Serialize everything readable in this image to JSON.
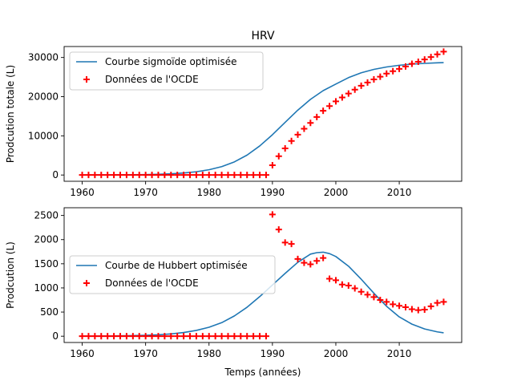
{
  "chart_data": [
    {
      "type": "line",
      "title": "HRV",
      "xlabel": "",
      "ylabel": "Prodcution totale (L)",
      "xlim": [
        1957.15,
        2019.85
      ],
      "ylim": [
        -1600,
        32800
      ],
      "xticks": [
        1960,
        1970,
        1980,
        1990,
        2000,
        2010
      ],
      "yticks": [
        0,
        10000,
        20000,
        30000
      ],
      "legend_position": "upper-left",
      "series": [
        {
          "name": "Courbe sigmoïde optimisée",
          "kind": "line",
          "color": "#1f77b4",
          "x": [
            1960,
            1962,
            1964,
            1966,
            1968,
            1970,
            1972,
            1974,
            1976,
            1978,
            1980,
            1982,
            1984,
            1986,
            1988,
            1990,
            1992,
            1994,
            1996,
            1998,
            2000,
            2002,
            2004,
            2006,
            2008,
            2010,
            2012,
            2014,
            2016,
            2017
          ],
          "y": [
            9,
            15,
            25,
            42,
            70,
            115,
            190,
            310,
            510,
            830,
            1340,
            2140,
            3350,
            5080,
            7420,
            10280,
            13430,
            16550,
            19310,
            21540,
            23210,
            24860,
            26090,
            26960,
            27580,
            28010,
            28310,
            28500,
            28640,
            28690
          ]
        },
        {
          "name": "Données de l'OCDE",
          "kind": "scatter",
          "marker": "plus",
          "color": "#ff0000",
          "x": [
            1960,
            1961,
            1962,
            1963,
            1964,
            1965,
            1966,
            1967,
            1968,
            1969,
            1970,
            1971,
            1972,
            1973,
            1974,
            1975,
            1976,
            1977,
            1978,
            1979,
            1980,
            1981,
            1982,
            1983,
            1984,
            1985,
            1986,
            1987,
            1988,
            1989,
            1990,
            1991,
            1992,
            1993,
            1994,
            1995,
            1996,
            1997,
            1998,
            1999,
            2000,
            2001,
            2002,
            2003,
            2004,
            2005,
            2006,
            2007,
            2008,
            2009,
            2010,
            2011,
            2012,
            2013,
            2014,
            2015,
            2016,
            2017
          ],
          "y": [
            0,
            0,
            0,
            0,
            0,
            0,
            0,
            0,
            0,
            0,
            0,
            0,
            0,
            0,
            0,
            0,
            0,
            0,
            0,
            0,
            0,
            0,
            0,
            0,
            0,
            0,
            0,
            0,
            0,
            0,
            2500,
            4800,
            6800,
            8700,
            10300,
            11800,
            13300,
            14800,
            16400,
            17600,
            18800,
            19800,
            20800,
            21800,
            22800,
            23600,
            24400,
            25100,
            25900,
            26500,
            27100,
            27700,
            28400,
            28900,
            29500,
            30100,
            30800,
            31500
          ]
        }
      ]
    },
    {
      "type": "line",
      "title": "",
      "xlabel": "Temps (années)",
      "ylabel": "Prodcution (L)",
      "xlim": [
        1957.15,
        2019.85
      ],
      "ylim": [
        -130,
        2660
      ],
      "xticks": [
        1960,
        1970,
        1980,
        1990,
        2000,
        2010
      ],
      "yticks": [
        0,
        500,
        1000,
        1500,
        2000,
        2500
      ],
      "legend_position": "center-left",
      "series": [
        {
          "name": "Courbe de Hubbert optimisée",
          "kind": "line",
          "color": "#1f77b4",
          "x": [
            1960,
            1962,
            1964,
            1966,
            1968,
            1970,
            1972,
            1974,
            1976,
            1978,
            1980,
            1982,
            1984,
            1986,
            1988,
            1990,
            1992,
            1994,
            1996,
            1997,
            1998,
            1999,
            2000,
            2002,
            2004,
            2006,
            2008,
            2010,
            2012,
            2014,
            2016,
            2017
          ],
          "y": [
            2,
            3,
            5,
            8,
            12,
            19,
            30,
            48,
            76,
            120,
            185,
            280,
            420,
            600,
            820,
            1060,
            1300,
            1530,
            1700,
            1730,
            1740,
            1710,
            1650,
            1450,
            1180,
            890,
            620,
            400,
            250,
            150,
            90,
            70
          ]
        },
        {
          "name": "Données de l'OCDE",
          "kind": "scatter",
          "marker": "plus",
          "color": "#ff0000",
          "x": [
            1960,
            1961,
            1962,
            1963,
            1964,
            1965,
            1966,
            1967,
            1968,
            1969,
            1970,
            1971,
            1972,
            1973,
            1974,
            1975,
            1976,
            1977,
            1978,
            1979,
            1980,
            1981,
            1982,
            1983,
            1984,
            1985,
            1986,
            1987,
            1988,
            1989,
            1990,
            1991,
            1992,
            1993,
            1994,
            1995,
            1996,
            1997,
            1998,
            1999,
            2000,
            2001,
            2002,
            2003,
            2004,
            2005,
            2006,
            2007,
            2008,
            2009,
            2010,
            2011,
            2012,
            2013,
            2014,
            2015,
            2016,
            2017
          ],
          "y": [
            0,
            0,
            0,
            0,
            0,
            0,
            0,
            0,
            0,
            0,
            0,
            0,
            0,
            0,
            0,
            0,
            0,
            0,
            0,
            0,
            0,
            0,
            0,
            0,
            0,
            0,
            0,
            0,
            0,
            0,
            2520,
            2210,
            1940,
            1910,
            1600,
            1520,
            1490,
            1560,
            1620,
            1190,
            1160,
            1070,
            1050,
            990,
            920,
            860,
            810,
            750,
            710,
            660,
            630,
            600,
            560,
            540,
            550,
            620,
            690,
            710
          ]
        }
      ]
    }
  ]
}
